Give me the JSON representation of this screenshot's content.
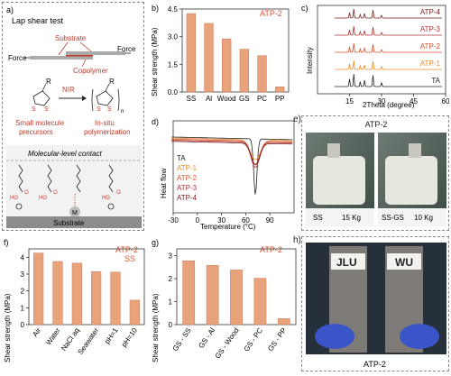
{
  "figure": {
    "panel_labels": [
      "a)",
      "b)",
      "c)",
      "d)",
      "e)",
      "f)",
      "g)",
      "h)"
    ]
  },
  "panel_a": {
    "title": "Lap shear test",
    "substrate_label": "Substrate",
    "copolymer_label": "Copolymer",
    "force_left": "Force",
    "force_right": "Force",
    "small_molecule_label_1": "Small molecule",
    "small_molecule_label_2": "precursors",
    "nir_label": "NIR",
    "insitu_label_1": "In-situ",
    "insitu_label_2": "polymerization",
    "molecular_contact_label": "Molecular-level contact",
    "substrate_bottom_label": "Substrate",
    "metal_label": "M",
    "ring_R": "R",
    "ring_S": "S",
    "chain_n": "n"
  },
  "panel_b": {
    "chart_data": {
      "type": "bar",
      "legend_text": "ATP-2",
      "categories": [
        "SS",
        "Al",
        "Wood",
        "GS",
        "PC",
        "PP"
      ],
      "values": [
        4.25,
        3.72,
        2.88,
        2.32,
        1.97,
        0.28
      ],
      "ylabel": "Shear strength (MPa)",
      "ylim": [
        0,
        4.5
      ],
      "yticks": [
        "0.0",
        "1.5",
        "3.0",
        "4.5"
      ],
      "bar_color": "#e8a27c"
    }
  },
  "panel_c": {
    "chart_data": {
      "type": "line",
      "series": [
        {
          "name": "ATP-4",
          "color": "#7a1f1f"
        },
        {
          "name": "ATP-3",
          "color": "#b33030"
        },
        {
          "name": "ATP-2",
          "color": "#d9502a"
        },
        {
          "name": "ATP-1",
          "color": "#f08a24"
        },
        {
          "name": "TA",
          "color": "#222222"
        }
      ],
      "xlabel": "2Theta (degree)",
      "ylabel": "Intensity",
      "xlim": [
        0,
        60
      ],
      "xticks": [
        "15",
        "30",
        "45",
        "60"
      ]
    }
  },
  "panel_d": {
    "chart_data": {
      "type": "line",
      "series": [
        {
          "name": "TA",
          "color": "#222222"
        },
        {
          "name": "ATP-1",
          "color": "#f08a24"
        },
        {
          "name": "ATP-2",
          "color": "#d9502a"
        },
        {
          "name": "ATP-3",
          "color": "#b33030"
        },
        {
          "name": "ATP-4",
          "color": "#7a1f1f"
        }
      ],
      "xlabel": "Temperature (°C)",
      "ylabel": "Heat flow",
      "xlim": [
        -30,
        120
      ],
      "xticks": [
        "-30",
        "0",
        "30",
        "60",
        "90"
      ]
    }
  },
  "panel_e": {
    "title": "ATP-2",
    "photo1_caption_a": "SS",
    "photo1_caption_b": "15 Kg",
    "photo2_caption_a": "SS-GS",
    "photo2_caption_b": "10 Kg"
  },
  "panel_f": {
    "chart_data": {
      "type": "bar",
      "legend_text_1": "ATP-2",
      "legend_text_2": "SS",
      "categories": [
        "Air",
        "Water",
        "NaCl aq",
        "Seawater",
        "pH=1",
        "pH=10"
      ],
      "values": [
        4.25,
        3.75,
        3.65,
        3.15,
        3.12,
        1.45
      ],
      "ylabel": "Shear strength (MPa)",
      "ylim": [
        0,
        4.5
      ],
      "yticks": [
        "0",
        "1",
        "2",
        "3",
        "4"
      ],
      "bar_color": "#e8a27c"
    }
  },
  "panel_g": {
    "chart_data": {
      "type": "bar",
      "legend_text": "ATP-2",
      "categories": [
        "GS - SS",
        "GS - Al",
        "GS - Wood",
        "GS - PC",
        "GS - PP"
      ],
      "values": [
        2.78,
        2.58,
        2.38,
        2.02,
        0.26
      ],
      "ylabel": "Shear strength (MPa)",
      "ylim": [
        0,
        3.3
      ],
      "yticks": [
        "0",
        "1",
        "2",
        "3"
      ],
      "bar_color": "#e8a27c"
    }
  },
  "panel_h": {
    "caption": "ATP-2",
    "label1": "JLU",
    "label2": "WU"
  }
}
